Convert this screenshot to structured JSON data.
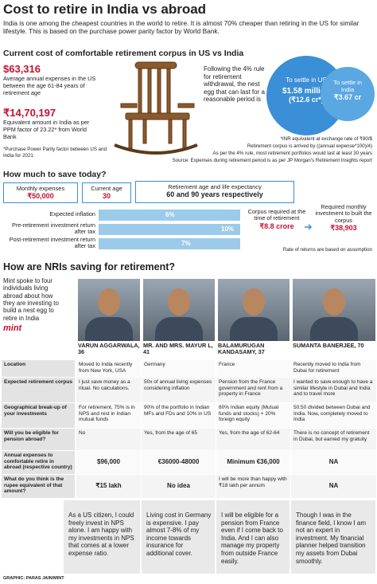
{
  "header": {
    "title": "Cost to retire in India vs abroad",
    "intro": "India is one among the cheapest countries in the world to retire. It is almost 70% cheaper than retiring in the US for similar lifestyle. This is based on the purchase power parity factor by World Bank."
  },
  "us_vs_india": {
    "title": "Current cost of comfortable retirement corpus in US vs India",
    "us_expense": "$63,316",
    "us_expense_note": "Average annual expenses in the US between the age 61-84 years of retirement age",
    "india_equivalent": "₹14,70,197",
    "india_equivalent_note": "Equivalent amount in India as per PPM factor of 23.22* from World Bank",
    "ppp_note": "*Purchase Power Parity factor between US and India for 2021",
    "rule_text": "Following the 4% rule for retirement withdrawal, the nest egg that can last for a reasonable period is",
    "us_circle": {
      "label": "To settle in US",
      "amount": "$1.58 million",
      "inr": "(₹12.6 cr*)"
    },
    "india_circle": {
      "label": "To settle in India",
      "amount": "₹3.67 cr"
    },
    "notes": [
      "*INR equivalent at exchange rate of ₹80/$",
      "Retirement corpus is arrived by ((annual expense*100)/4)",
      "As per the 4% rule, most retirement portfolios would last at least 30 years",
      "Source: Expenses during retirement period is as per JP Morgan's Retirement Insights report"
    ]
  },
  "savings": {
    "title": "How much to save today?",
    "inputs": [
      {
        "label": "Monthly expenses",
        "value": "₹50,000"
      },
      {
        "label": "Current age",
        "value": "30"
      },
      {
        "label": "Retirement age and life expectancy",
        "value": "60 and 90 years respectively"
      }
    ],
    "rates": [
      {
        "label": "Expected inflation",
        "value": "6%"
      },
      {
        "label": "Pre-retirement investment return after tax",
        "value": "10%"
      },
      {
        "label": "Post-retirement investment return after tax",
        "value": "7%"
      }
    ],
    "corpus": {
      "label": "Corpus required at the time of retirement",
      "value": "₹8.8 crore"
    },
    "monthly": {
      "label": "Required monthly investment to built the corpus",
      "value": "₹38,903"
    },
    "note": "Rate of returns are based on assumption"
  },
  "nris": {
    "title": "How are NRIs saving for retirement?",
    "intro": "Mint spoke to four individuals living abroad about how they are investing to build a nest egg to retire in India",
    "brand": "mint",
    "people": [
      "VARUN AGGARWALA, 36",
      "MR. AND MRS. MAYUR L, 41",
      "BALAMURUGAN KANDASAMY, 37",
      "SUMANTA BANERJEE, 70"
    ],
    "rows": [
      {
        "label": "Location",
        "cells": [
          "Moved to India recently from New York, USA",
          "Germany",
          "France",
          "Recently moved to India from Dubai for retirement"
        ]
      },
      {
        "label": "Expected retirement corpus",
        "cells": [
          "I just save money as a ritual. No calculations.",
          "50x of annual living expenses considering inflation",
          "Pension from the France government and rent from a property in France",
          "I wanted to save enough to have a similar lifestyle in Dubai and India and to travel more"
        ]
      },
      {
        "label": "Geographical break-up of your investments",
        "cells": [
          "For retirement, 75% is in NPS and rest in Indian mutual funds",
          "90% of the portfolio in Indian MFs and FDs and 10% in US",
          "80% Indian equity (Mutual funds and stocks) + 20% foreign equity",
          "50:50 divided between Dubai and India. Now, completely moved to India"
        ]
      },
      {
        "label": "Will you be eligible for pension abroad?",
        "cells": [
          "No",
          "Yes, from the age of 65",
          "Yes, from the age of 62-64",
          "There is no concept of retirement in Dubai, but earned my gratuity"
        ]
      },
      {
        "label": "Annual expenses to comfortable retire in abroad (respective country)",
        "cells": [
          "$96,000",
          "€36000-48000",
          "Minimum €36,000",
          "NA"
        ]
      },
      {
        "label": "What do you think is the rupee equivalent of that amount?",
        "cells": [
          "₹15 lakh",
          "No idea",
          "I will be more than happy with ₹18 lakh per annum",
          "NA"
        ]
      }
    ],
    "quotes": [
      "As a US citizen, I could freely invest in NPS alone. I am happy with my investments in NPS that comes at a lower expense ratio.",
      "Living cost in Germany is expensive. I pay almost 7-8% of my income towards insurance for additional cover.",
      "I will be eligible for a pension from France even if I come back to India. And I can also manage my property from outside France easily.",
      "Though I was in the finance field, I know I am not an expert in investment. My financial planner helped transition my assets from Dubai smoothly."
    ],
    "credit": "GRAPHIC: PARAS JAIN/MINT"
  }
}
